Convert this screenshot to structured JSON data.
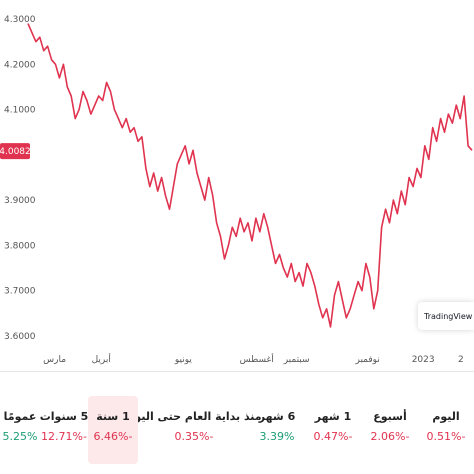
{
  "chart_data": {
    "type": "line",
    "title": "",
    "xlabel": "",
    "ylabel": "",
    "ylim": [
      3.58,
      4.32
    ],
    "line_color": "#e0334f",
    "current_price_label": "4.0082",
    "current_price": 4.0082,
    "y_ticks": [
      {
        "value": 4.3,
        "label": "4.3000"
      },
      {
        "value": 4.2,
        "label": "4.2000"
      },
      {
        "value": 4.1,
        "label": "4.1000"
      },
      {
        "value": 3.9,
        "label": "3.9000"
      },
      {
        "value": 3.8,
        "label": "3.8000"
      },
      {
        "value": 3.7,
        "label": "3.7000"
      },
      {
        "value": 3.6,
        "label": "3.6000"
      }
    ],
    "x_ticks": [
      {
        "label": "مارس",
        "pos": 0.06
      },
      {
        "label": "أبريل",
        "pos": 0.165
      },
      {
        "label": "يونيو",
        "pos": 0.35
      },
      {
        "label": "أغسطس",
        "pos": 0.515
      },
      {
        "label": "سبتمبر",
        "pos": 0.605
      },
      {
        "label": "نوفمبر",
        "pos": 0.765
      },
      {
        "label": "2023",
        "pos": 0.89
      },
      {
        "label": "2",
        "pos": 0.975
      }
    ],
    "series": [
      {
        "values": [
          4.29,
          4.27,
          4.25,
          4.26,
          4.23,
          4.24,
          4.21,
          4.2,
          4.17,
          4.2,
          4.15,
          4.13,
          4.08,
          4.1,
          4.14,
          4.12,
          4.09,
          4.11,
          4.13,
          4.12,
          4.16,
          4.14,
          4.1,
          4.08,
          4.06,
          4.08,
          4.05,
          4.06,
          4.03,
          4.04,
          3.97,
          3.93,
          3.96,
          3.92,
          3.95,
          3.91,
          3.88,
          3.93,
          3.98,
          4.0,
          4.02,
          3.98,
          4.01,
          3.96,
          3.93,
          3.9,
          3.95,
          3.91,
          3.85,
          3.82,
          3.77,
          3.8,
          3.84,
          3.82,
          3.86,
          3.83,
          3.85,
          3.81,
          3.86,
          3.83,
          3.87,
          3.84,
          3.8,
          3.76,
          3.78,
          3.75,
          3.73,
          3.76,
          3.72,
          3.74,
          3.71,
          3.76,
          3.74,
          3.71,
          3.67,
          3.64,
          3.66,
          3.62,
          3.69,
          3.72,
          3.68,
          3.64,
          3.66,
          3.69,
          3.72,
          3.7,
          3.76,
          3.73,
          3.66,
          3.7,
          3.84,
          3.88,
          3.85,
          3.9,
          3.87,
          3.92,
          3.89,
          3.95,
          3.93,
          3.97,
          3.95,
          4.02,
          3.99,
          4.06,
          4.03,
          4.08,
          4.05,
          4.09,
          4.07,
          4.11,
          4.08,
          4.13,
          4.02,
          4.01
        ]
      }
    ]
  },
  "branding": {
    "logo_text": "TradingView",
    "logo_mark": "17"
  },
  "performance": [
    {
      "label": "اليوم",
      "value": "0.51%-",
      "color": "#e0334f",
      "active": false
    },
    {
      "label": "أسبوع",
      "value": "2.06%-",
      "color": "#e0334f",
      "active": false
    },
    {
      "label": "1 شهر",
      "value": "0.47%-",
      "color": "#e0334f",
      "active": false
    },
    {
      "label": "6 شهر",
      "value": "3.39%",
      "color": "#1c9d74",
      "active": false
    },
    {
      "label": "منذ بداية العام حتى اليوم",
      "value": "0.35%-",
      "color": "#e0334f",
      "active": false
    },
    {
      "label": "1 سنة",
      "value": "6.46%-",
      "color": "#e0334f",
      "active": true
    },
    {
      "label": "5 سنوات",
      "value": "12.71%-",
      "color": "#e0334f",
      "active": false
    },
    {
      "label": "عمومًا",
      "value": "5.25%",
      "color": "#1c9d74",
      "active": false
    }
  ]
}
